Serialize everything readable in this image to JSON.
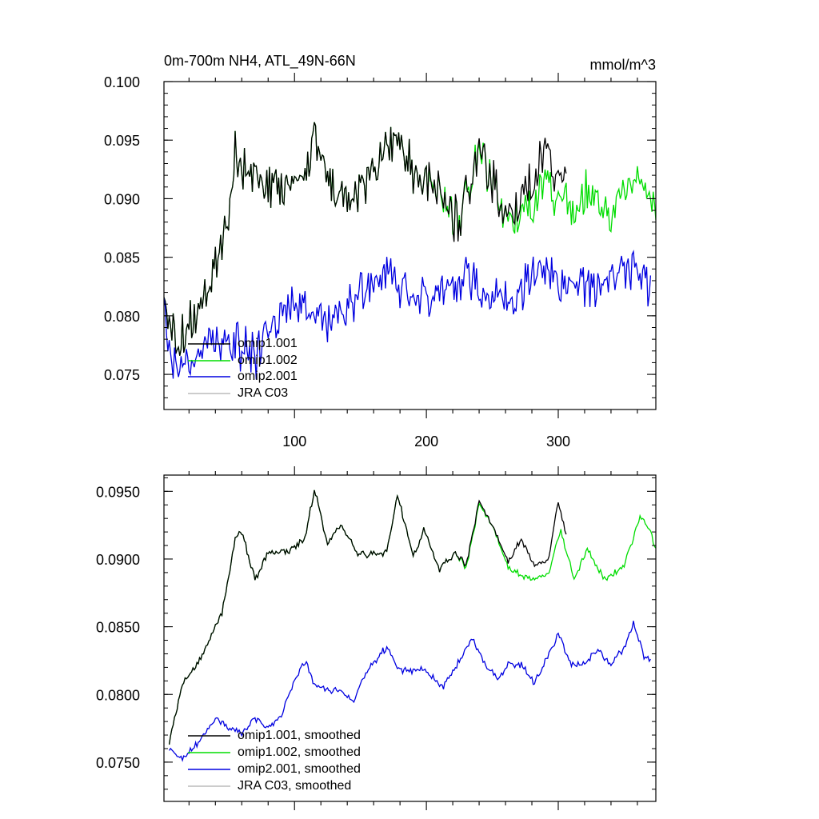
{
  "colors": {
    "omip1_001": "#000000",
    "omip1_002": "#00dd00",
    "omip2_001": "#0000e0",
    "jra_c03": "#bbbbbb"
  },
  "chart_data": [
    {
      "type": "line",
      "title": "0m-700m NH4, ATL_49N-66N",
      "units": "mmol/m^3",
      "xlabel": "",
      "ylabel": "",
      "xlim": [
        1,
        374
      ],
      "ylim": [
        0.072,
        0.1
      ],
      "x_ticks": [
        100,
        200,
        300
      ],
      "x_tick_labels": [
        "100",
        "200",
        "300"
      ],
      "y_ticks": [
        0.075,
        0.08,
        0.085,
        0.09,
        0.095,
        0.1
      ],
      "y_tick_labels": [
        "0.075",
        "0.080",
        "0.085",
        "0.090",
        "0.095",
        "0.100"
      ],
      "legend": [
        "omip1.001",
        "omip1.002",
        "omip2.001",
        "JRA C03"
      ],
      "legend_position": "bottom-left",
      "series": [
        {
          "name": "omip1.001",
          "color_key": "omip1_001",
          "end_year": 306,
          "anchors": [
            [
              1,
              0.081
            ],
            [
              10,
              0.0775
            ],
            [
              30,
              0.081
            ],
            [
              50,
              0.088
            ],
            [
              55,
              0.0935
            ],
            [
              70,
              0.092
            ],
            [
              90,
              0.0905
            ],
            [
              110,
              0.0925
            ],
            [
              115,
              0.0955
            ],
            [
              130,
              0.0905
            ],
            [
              150,
              0.091
            ],
            [
              175,
              0.0955
            ],
            [
              190,
              0.0925
            ],
            [
              210,
              0.0905
            ],
            [
              225,
              0.088
            ],
            [
              240,
              0.0945
            ],
            [
              260,
              0.0885
            ],
            [
              280,
              0.0915
            ],
            [
              292,
              0.094
            ],
            [
              306,
              0.0905
            ]
          ],
          "noise": 0.0024
        },
        {
          "name": "omip1.002",
          "color_key": "omip1_002",
          "end_year": 374,
          "anchors": [
            [
              1,
              0.081
            ],
            [
              10,
              0.0775
            ],
            [
              30,
              0.081
            ],
            [
              50,
              0.088
            ],
            [
              55,
              0.0935
            ],
            [
              70,
              0.092
            ],
            [
              90,
              0.0905
            ],
            [
              110,
              0.0925
            ],
            [
              115,
              0.0955
            ],
            [
              130,
              0.0905
            ],
            [
              150,
              0.091
            ],
            [
              175,
              0.0955
            ],
            [
              190,
              0.0925
            ],
            [
              210,
              0.0905
            ],
            [
              225,
              0.088
            ],
            [
              240,
              0.0945
            ],
            [
              260,
              0.0885
            ],
            [
              280,
              0.0895
            ],
            [
              292,
              0.0915
            ],
            [
              310,
              0.0885
            ],
            [
              320,
              0.0905
            ],
            [
              340,
              0.089
            ],
            [
              360,
              0.092
            ],
            [
              374,
              0.089
            ]
          ],
          "noise": 0.0024
        },
        {
          "name": "omip2.001",
          "color_key": "omip2_001",
          "end_year": 370,
          "anchors": [
            [
              1,
              0.0805
            ],
            [
              5,
              0.076
            ],
            [
              20,
              0.0755
            ],
            [
              35,
              0.078
            ],
            [
              50,
              0.0775
            ],
            [
              60,
              0.0775
            ],
            [
              70,
              0.0765
            ],
            [
              85,
              0.079
            ],
            [
              95,
              0.081
            ],
            [
              110,
              0.0805
            ],
            [
              130,
              0.0795
            ],
            [
              150,
              0.082
            ],
            [
              170,
              0.0835
            ],
            [
              190,
              0.0815
            ],
            [
              210,
              0.082
            ],
            [
              230,
              0.0835
            ],
            [
              250,
              0.0815
            ],
            [
              270,
              0.082
            ],
            [
              290,
              0.084
            ],
            [
              310,
              0.0825
            ],
            [
              330,
              0.0825
            ],
            [
              350,
              0.0845
            ],
            [
              370,
              0.0825
            ]
          ],
          "noise": 0.0024
        },
        {
          "name": "JRA C03",
          "color_key": "jra_c03",
          "anchors": [],
          "noise": 0
        }
      ]
    },
    {
      "type": "line",
      "title": "",
      "units": "",
      "xlabel": "",
      "ylabel": "",
      "xlim": [
        1,
        374
      ],
      "ylim": [
        0.0721,
        0.0962
      ],
      "x_ticks": [
        100,
        200,
        300
      ],
      "x_tick_labels": [
        "",
        "",
        ""
      ],
      "y_ticks": [
        0.075,
        0.08,
        0.085,
        0.09,
        0.095
      ],
      "y_tick_labels": [
        "0.0750",
        "0.0800",
        "0.0850",
        "0.0900",
        "0.0950"
      ],
      "legend": [
        "omip1.001, smoothed",
        "omip1.002, smoothed",
        "omip2.001, smoothed",
        "JRA C03, smoothed"
      ],
      "legend_position": "bottom-left",
      "series": [
        {
          "name": "omip1.001, smoothed",
          "color_key": "omip1_001",
          "anchors": [
            [
              5,
              0.0765
            ],
            [
              15,
              0.0808
            ],
            [
              25,
              0.082
            ],
            [
              35,
              0.084
            ],
            [
              45,
              0.086
            ],
            [
              55,
              0.0915
            ],
            [
              60,
              0.092
            ],
            [
              70,
              0.0885
            ],
            [
              80,
              0.0905
            ],
            [
              95,
              0.0905
            ],
            [
              108,
              0.0915
            ],
            [
              115,
              0.0952
            ],
            [
              125,
              0.091
            ],
            [
              135,
              0.0925
            ],
            [
              148,
              0.0905
            ],
            [
              160,
              0.0903
            ],
            [
              170,
              0.0905
            ],
            [
              178,
              0.0948
            ],
            [
              190,
              0.0902
            ],
            [
              198,
              0.0922
            ],
            [
              210,
              0.0893
            ],
            [
              222,
              0.0905
            ],
            [
              230,
              0.0895
            ],
            [
              240,
              0.0942
            ],
            [
              250,
              0.0925
            ],
            [
              262,
              0.0897
            ],
            [
              272,
              0.0915
            ],
            [
              282,
              0.0895
            ],
            [
              292,
              0.0898
            ],
            [
              300,
              0.0942
            ],
            [
              306,
              0.092
            ]
          ],
          "noise": 0.0003
        },
        {
          "name": "omip1.002, smoothed",
          "color_key": "omip1_002",
          "anchors": [
            [
              5,
              0.0765
            ],
            [
              15,
              0.0808
            ],
            [
              25,
              0.082
            ],
            [
              35,
              0.084
            ],
            [
              45,
              0.086
            ],
            [
              55,
              0.0915
            ],
            [
              60,
              0.092
            ],
            [
              70,
              0.0885
            ],
            [
              80,
              0.0905
            ],
            [
              95,
              0.0905
            ],
            [
              108,
              0.0915
            ],
            [
              115,
              0.0952
            ],
            [
              125,
              0.091
            ],
            [
              135,
              0.0925
            ],
            [
              148,
              0.0905
            ],
            [
              160,
              0.0903
            ],
            [
              170,
              0.0905
            ],
            [
              178,
              0.0948
            ],
            [
              190,
              0.0902
            ],
            [
              198,
              0.0922
            ],
            [
              210,
              0.0893
            ],
            [
              222,
              0.0905
            ],
            [
              230,
              0.0893
            ],
            [
              240,
              0.094
            ],
            [
              250,
              0.0925
            ],
            [
              262,
              0.0893
            ],
            [
              272,
              0.0888
            ],
            [
              282,
              0.0885
            ],
            [
              292,
              0.0888
            ],
            [
              302,
              0.0922
            ],
            [
              312,
              0.0885
            ],
            [
              322,
              0.0908
            ],
            [
              335,
              0.0885
            ],
            [
              350,
              0.0895
            ],
            [
              362,
              0.093
            ],
            [
              368,
              0.0925
            ],
            [
              374,
              0.0908
            ]
          ],
          "noise": 0.0003
        },
        {
          "name": "omip2.001, smoothed",
          "color_key": "omip2_001",
          "anchors": [
            [
              5,
              0.076
            ],
            [
              15,
              0.0752
            ],
            [
              25,
              0.0762
            ],
            [
              40,
              0.0782
            ],
            [
              50,
              0.0775
            ],
            [
              60,
              0.0772
            ],
            [
              70,
              0.0782
            ],
            [
              80,
              0.0775
            ],
            [
              90,
              0.0785
            ],
            [
              100,
              0.081
            ],
            [
              108,
              0.0825
            ],
            [
              115,
              0.0808
            ],
            [
              125,
              0.0803
            ],
            [
              135,
              0.0803
            ],
            [
              145,
              0.0795
            ],
            [
              155,
              0.0818
            ],
            [
              170,
              0.0835
            ],
            [
              180,
              0.0818
            ],
            [
              190,
              0.0818
            ],
            [
              200,
              0.0818
            ],
            [
              212,
              0.0805
            ],
            [
              225,
              0.0825
            ],
            [
              235,
              0.0842
            ],
            [
              245,
              0.082
            ],
            [
              255,
              0.0812
            ],
            [
              262,
              0.0823
            ],
            [
              272,
              0.0822
            ],
            [
              282,
              0.0808
            ],
            [
              292,
              0.0828
            ],
            [
              300,
              0.0845
            ],
            [
              310,
              0.0822
            ],
            [
              320,
              0.0823
            ],
            [
              330,
              0.0833
            ],
            [
              340,
              0.0822
            ],
            [
              350,
              0.0835
            ],
            [
              357,
              0.0852
            ],
            [
              365,
              0.0828
            ],
            [
              370,
              0.0825
            ]
          ],
          "noise": 0.0003
        },
        {
          "name": "JRA C03, smoothed",
          "color_key": "jra_c03",
          "anchors": [],
          "noise": 0
        }
      ]
    }
  ]
}
